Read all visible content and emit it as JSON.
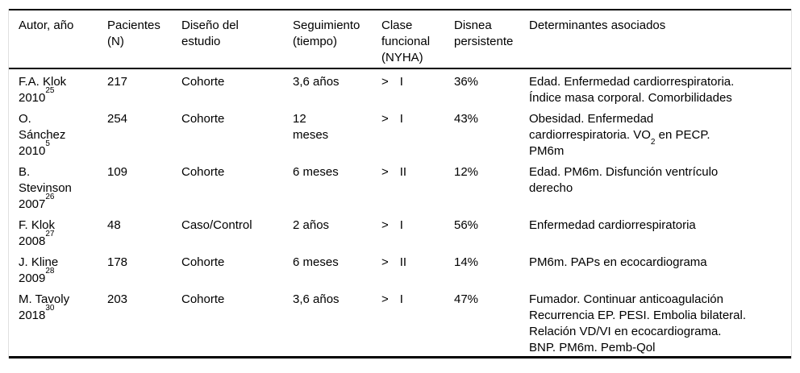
{
  "table": {
    "columns": [
      {
        "key": "autor",
        "label": "Autor, año"
      },
      {
        "key": "pacientes",
        "label": "Pacientes\n(N)"
      },
      {
        "key": "diseno",
        "label": "Diseño del\nestudio"
      },
      {
        "key": "seguimiento",
        "label": "Seguimiento\n(tiempo)"
      },
      {
        "key": "nyha",
        "label": "Clase\nfuncional\n(NYHA)"
      },
      {
        "key": "disnea",
        "label": "Disnea\npersistente"
      },
      {
        "key": "determinantes",
        "label": "Determinantes asociados"
      }
    ],
    "rows": [
      {
        "autor": {
          "lines": [
            "F.A. Klok",
            "2010"
          ],
          "ref": "25"
        },
        "pacientes": "217",
        "diseno": "Cohorte",
        "seguimiento": "3,6 años",
        "nyha": {
          "op": ">",
          "grade": "I"
        },
        "disnea": "36%",
        "determinantes": [
          {
            "text": "Edad. Enfermedad cardiorrespiratoria.\nÍndice masa corporal. Comorbilidades"
          }
        ]
      },
      {
        "autor": {
          "lines": [
            "O.",
            "Sánchez",
            "2010"
          ],
          "ref": "5"
        },
        "pacientes": "254",
        "diseno": "Cohorte",
        "seguimiento": "12\nmeses",
        "nyha": {
          "op": ">",
          "grade": "I"
        },
        "disnea": "43%",
        "determinantes": [
          {
            "text": "Obesidad. Enfermedad\ncardiorrespiratoria. VO"
          },
          {
            "text": "2",
            "sub": true
          },
          {
            "text": " en PECP.\nPM6m"
          }
        ]
      },
      {
        "autor": {
          "lines": [
            "B.",
            "Stevinson",
            "2007"
          ],
          "ref": "26"
        },
        "pacientes": "109",
        "diseno": "Cohorte",
        "seguimiento": "6 meses",
        "nyha": {
          "op": ">",
          "grade": "II"
        },
        "disnea": "12%",
        "determinantes": [
          {
            "text": "Edad. PM6m. Disfunción ventrículo\nderecho"
          }
        ]
      },
      {
        "autor": {
          "lines": [
            "F. Klok",
            "2008"
          ],
          "ref": "27"
        },
        "pacientes": "48",
        "diseno": "Caso/Control",
        "seguimiento": "2 años",
        "nyha": {
          "op": ">",
          "grade": "I"
        },
        "disnea": "56%",
        "determinantes": [
          {
            "text": "Enfermedad cardiorrespiratoria"
          }
        ]
      },
      {
        "autor": {
          "lines": [
            "J. Kline",
            "2009"
          ],
          "ref": "28"
        },
        "pacientes": "178",
        "diseno": "Cohorte",
        "seguimiento": "6 meses",
        "nyha": {
          "op": ">",
          "grade": "II"
        },
        "disnea": "14%",
        "determinantes": [
          {
            "text": "PM6m. PAPs en ecocardiograma"
          }
        ]
      },
      {
        "autor": {
          "lines": [
            "M. Tavoly",
            "2018"
          ],
          "ref": "30"
        },
        "pacientes": "203",
        "diseno": "Cohorte",
        "seguimiento": "3,6 años",
        "nyha": {
          "op": ">",
          "grade": "I"
        },
        "disnea": "47%",
        "determinantes": [
          {
            "text": "Fumador. Continuar anticoagulación\nRecurrencia EP. PESI. Embolia bilateral.\nRelación VD/VI en ecocardiograma.\nBNP. PM6m. Pemb-Qol"
          }
        ]
      }
    ]
  }
}
